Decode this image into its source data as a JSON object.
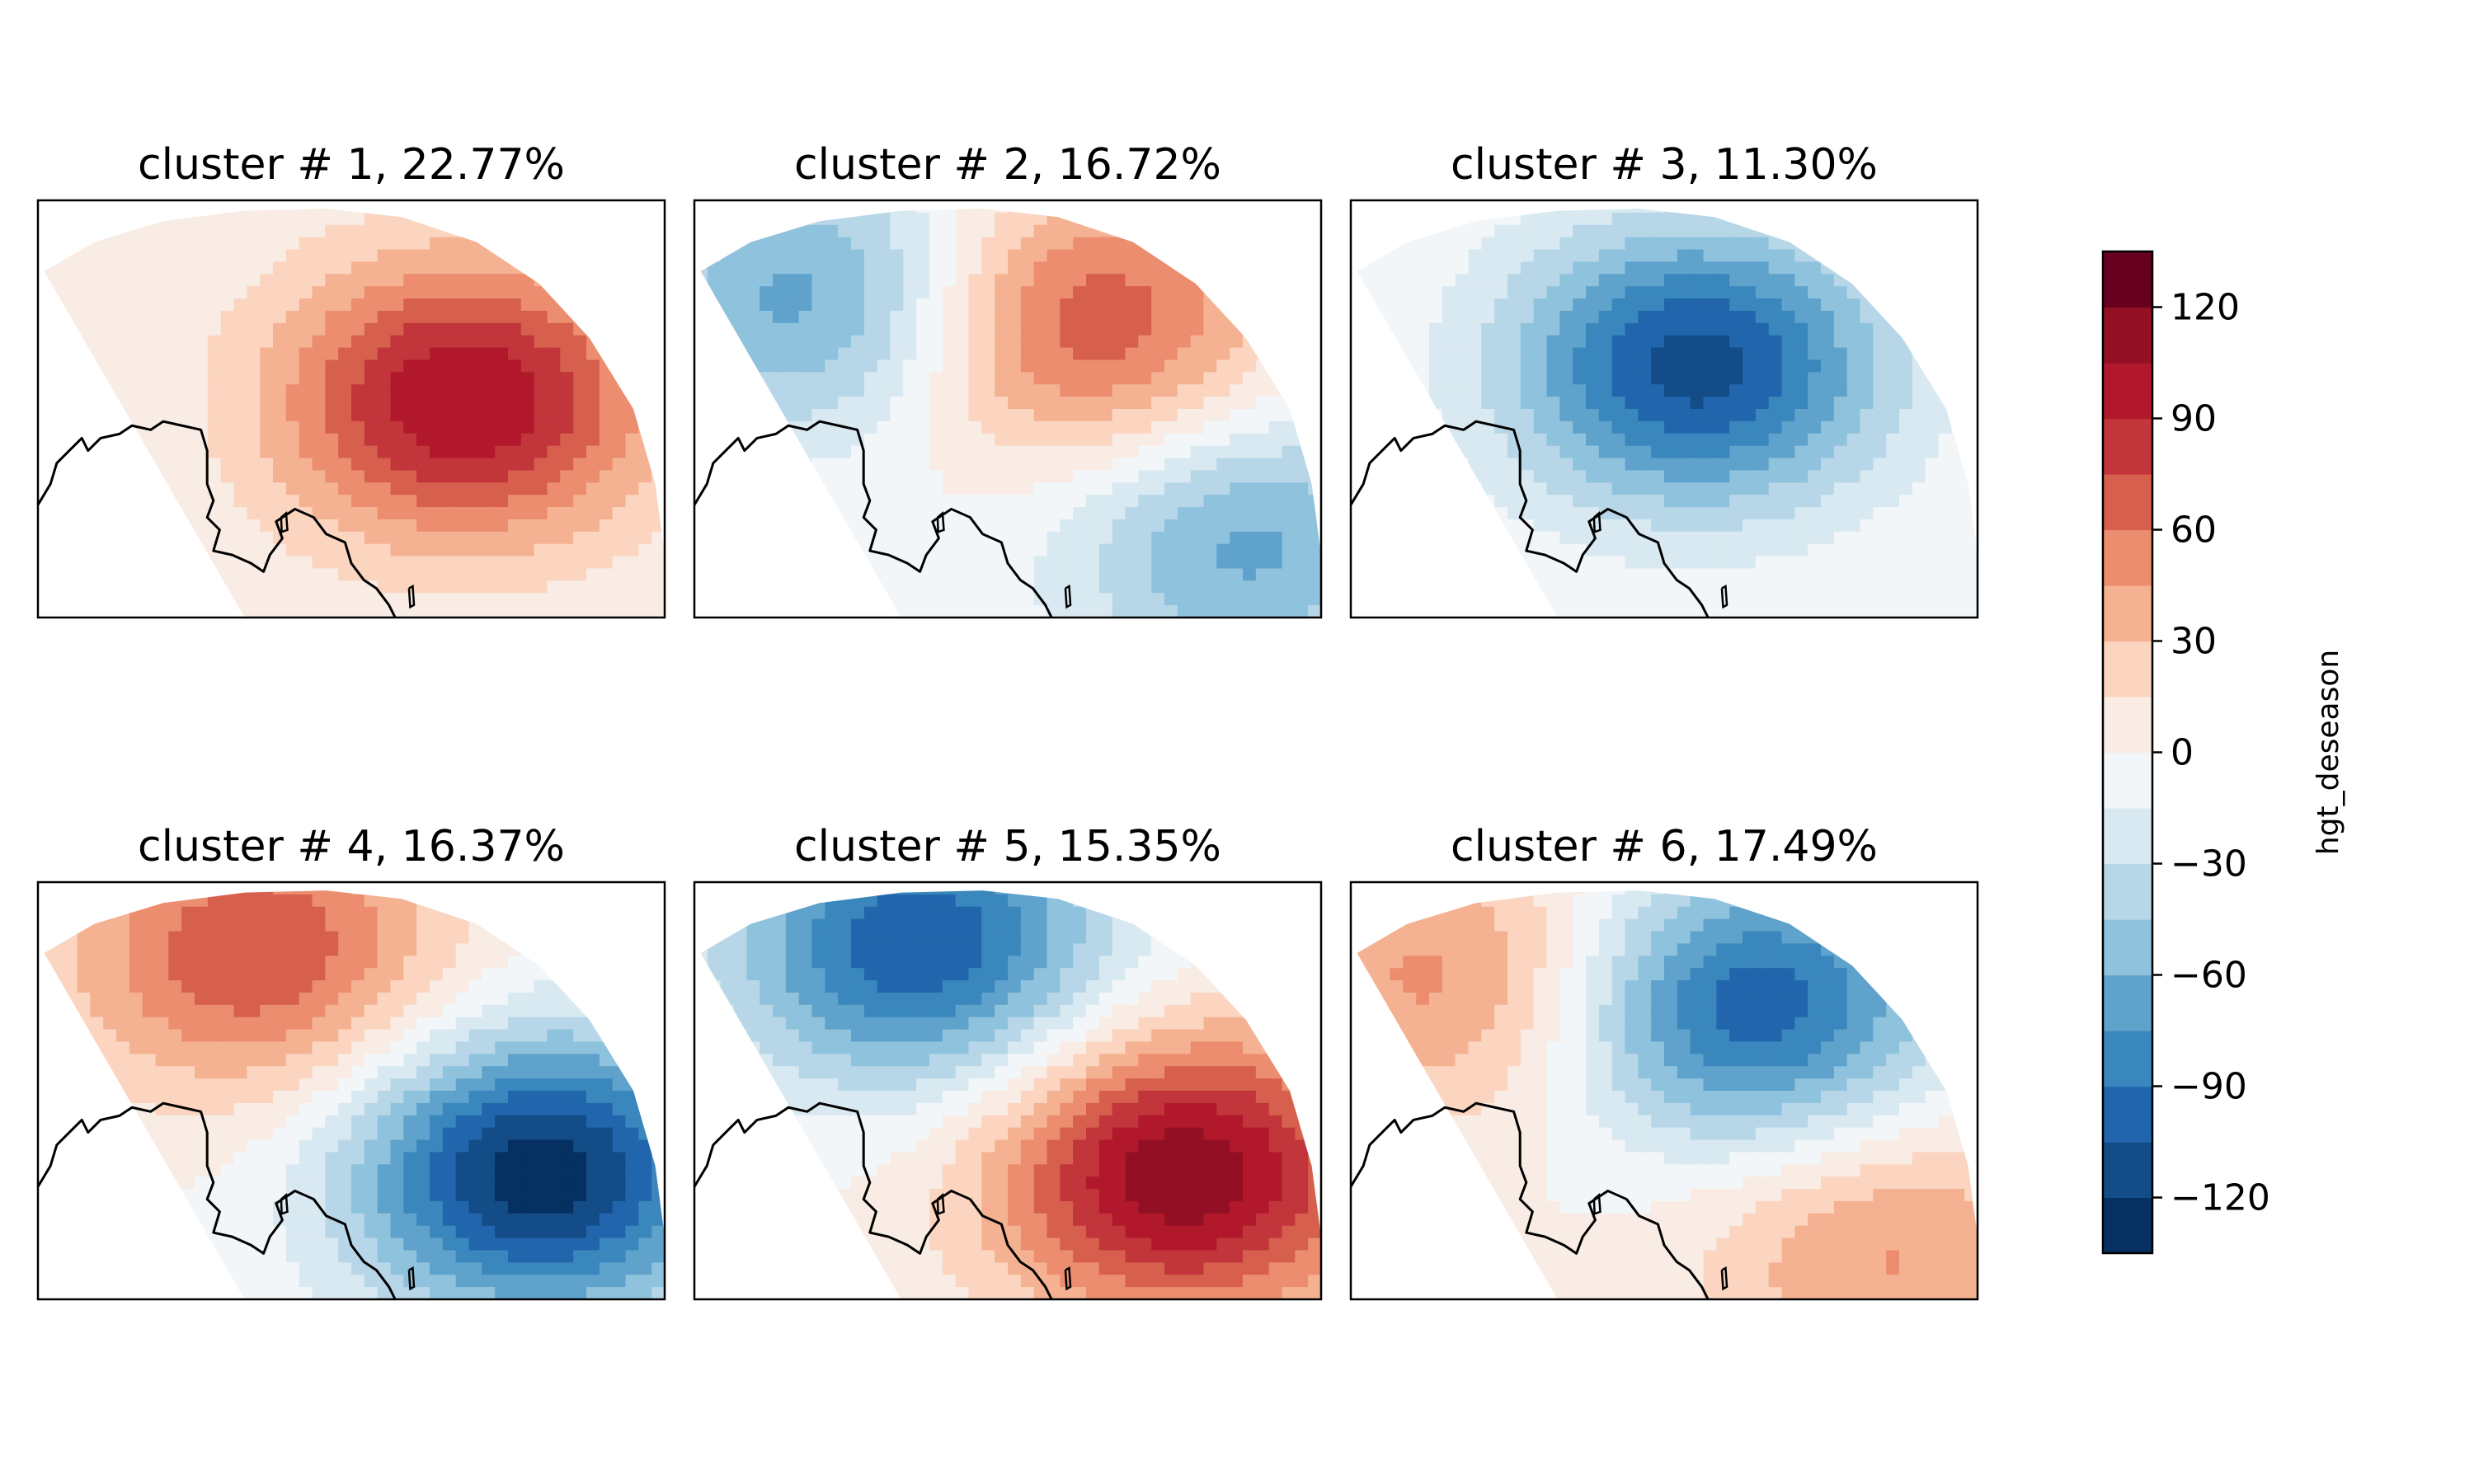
{
  "chart_data": {
    "type": "contour-map",
    "variable": "hgt_deseason",
    "colorbar": {
      "label": "hgt_deseason",
      "ticks": [
        120,
        90,
        60,
        30,
        0,
        -30,
        -60,
        -90,
        -120
      ],
      "tick_labels": [
        "120",
        "90",
        "60",
        "30",
        "0",
        "−30",
        "−60",
        "−90",
        "−120"
      ],
      "range": [
        -135,
        135
      ],
      "level_step": 15,
      "colors": [
        "#053061",
        "#134c87",
        "#2166ac",
        "#3a87bd",
        "#5fa2cb",
        "#8fc2dd",
        "#b7d7e8",
        "#d9e9f1",
        "#f2f6f8",
        "#f8ece4",
        "#fbd5c0",
        "#f5b292",
        "#ec8d6f",
        "#d6604d",
        "#c1353b",
        "#b2182b",
        "#930f24",
        "#67001f"
      ]
    },
    "panels": [
      {
        "title": "cluster # 1, 22.77%",
        "cluster": 1,
        "percent": 22.77,
        "centers": [
          {
            "sign": "+",
            "peak": 105,
            "lon_frac": 0.68,
            "lat_frac": 0.48
          }
        ]
      },
      {
        "title": "cluster # 2, 16.72%",
        "cluster": 2,
        "percent": 16.72,
        "centers": [
          {
            "sign": "-",
            "peak": -70,
            "lon_frac": 0.2,
            "lat_frac": 0.24
          },
          {
            "sign": "+",
            "peak": 78,
            "lon_frac": 0.62,
            "lat_frac": 0.3
          },
          {
            "sign": "-",
            "peak": -65,
            "lon_frac": 0.88,
            "lat_frac": 0.82
          }
        ]
      },
      {
        "title": "cluster # 3, 11.30%",
        "cluster": 3,
        "percent": 11.3,
        "centers": [
          {
            "sign": "-",
            "peak": -112,
            "lon_frac": 0.55,
            "lat_frac": 0.4
          }
        ]
      },
      {
        "title": "cluster # 4, 16.37%",
        "cluster": 4,
        "percent": 16.37,
        "centers": [
          {
            "sign": "+",
            "peak": 75,
            "lon_frac": 0.35,
            "lat_frac": 0.17
          },
          {
            "sign": "-",
            "peak": -130,
            "lon_frac": 0.8,
            "lat_frac": 0.7
          }
        ]
      },
      {
        "title": "cluster # 5, 15.35%",
        "cluster": 5,
        "percent": 15.35,
        "centers": [
          {
            "sign": "-",
            "peak": -105,
            "lon_frac": 0.36,
            "lat_frac": 0.15
          },
          {
            "sign": "+",
            "peak": 118,
            "lon_frac": 0.78,
            "lat_frac": 0.7
          }
        ]
      },
      {
        "title": "cluster # 6, 17.49%",
        "cluster": 6,
        "percent": 17.49,
        "centers": [
          {
            "sign": "+",
            "peak": 52,
            "lon_frac": 0.16,
            "lat_frac": 0.23
          },
          {
            "sign": "-",
            "peak": -102,
            "lon_frac": 0.64,
            "lat_frac": 0.3
          },
          {
            "sign": "+",
            "peak": 48,
            "lon_frac": 0.85,
            "lat_frac": 0.88
          }
        ]
      }
    ]
  }
}
